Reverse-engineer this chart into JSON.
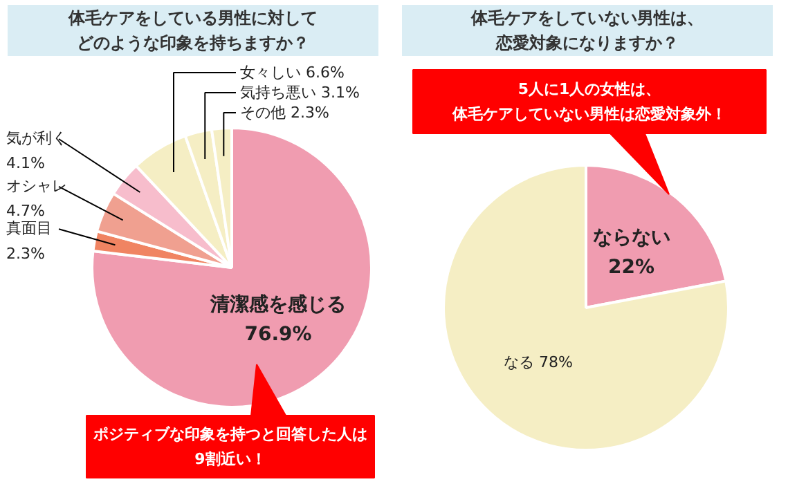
{
  "chart_data": [
    {
      "type": "pie",
      "title": "体毛ケアをしている男性に対してどのような印象を持ちますか？",
      "categories": [
        "清潔感を感じる",
        "真面目",
        "オシャレ",
        "気が利く",
        "女々しい",
        "気持ち悪い",
        "その他"
      ],
      "values": [
        76.9,
        2.3,
        4.7,
        4.1,
        6.6,
        3.1,
        2.3
      ],
      "value_labels": [
        "76.9%",
        "2.3%",
        "4.7%",
        "4.1%",
        "6.6%",
        "3.1%",
        "2.3%"
      ],
      "colors": [
        "#f09cb0",
        "#f08462",
        "#f0a090",
        "#f7bdcc",
        "#f5eec4",
        "#f5eec4",
        "#f5eec4"
      ],
      "annotations": [
        "ポジティブな印象を持つと回答した人は9割近い！"
      ]
    },
    {
      "type": "pie",
      "title": "体毛ケアをしていない男性は、恋愛対象になりますか？",
      "categories": [
        "ならない",
        "なる"
      ],
      "values": [
        22,
        78
      ],
      "value_labels": [
        "22%",
        "78%"
      ],
      "colors": [
        "#f09cb0",
        "#f5eec4"
      ],
      "annotations": [
        "5人に1人の女性は、体毛ケアしていない男性は恋愛対象外！"
      ]
    }
  ]
}
